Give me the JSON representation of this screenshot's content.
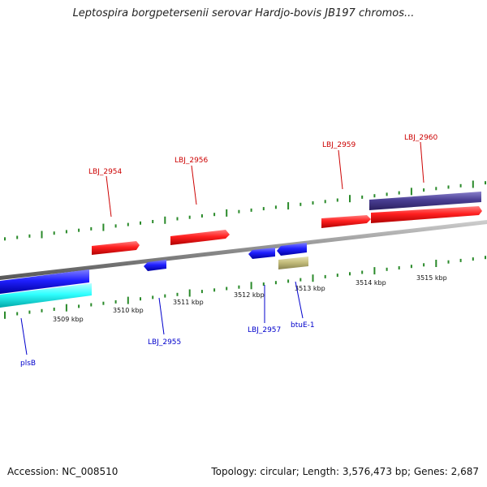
{
  "title": "Leptospira borgpetersenii serovar Hardjo-bovis JB197 chromos...",
  "footer": {
    "accession": "Accession: NC_008510",
    "stats": "Topology: circular; Length: 3,576,473 bp; Genes: 2,687"
  },
  "scale_labels": [
    "3509 kbp",
    "3510 kbp",
    "3511 kbp",
    "3512 kbp",
    "3513 kbp",
    "3514 kbp",
    "3515 kbp"
  ],
  "genes": {
    "forward": [
      "LBJ_2954",
      "LBJ_2956",
      "LBJ_2959",
      "LBJ_2960"
    ],
    "reverse": [
      "plsB",
      "LBJ_2955",
      "LBJ_2957",
      "btuE-1"
    ]
  },
  "colors": {
    "forward_label": "#cc0000",
    "reverse_label": "#0000cc",
    "tick": "#2a8a2a",
    "backbone": "#8c8c8c",
    "red_gene": "#ff1a1a",
    "blue_gene": "#1a1aff",
    "cyan_gene": "#22ffff",
    "navy_gene": "#4a3f94",
    "khaki_gene": "#c4bd7c"
  }
}
